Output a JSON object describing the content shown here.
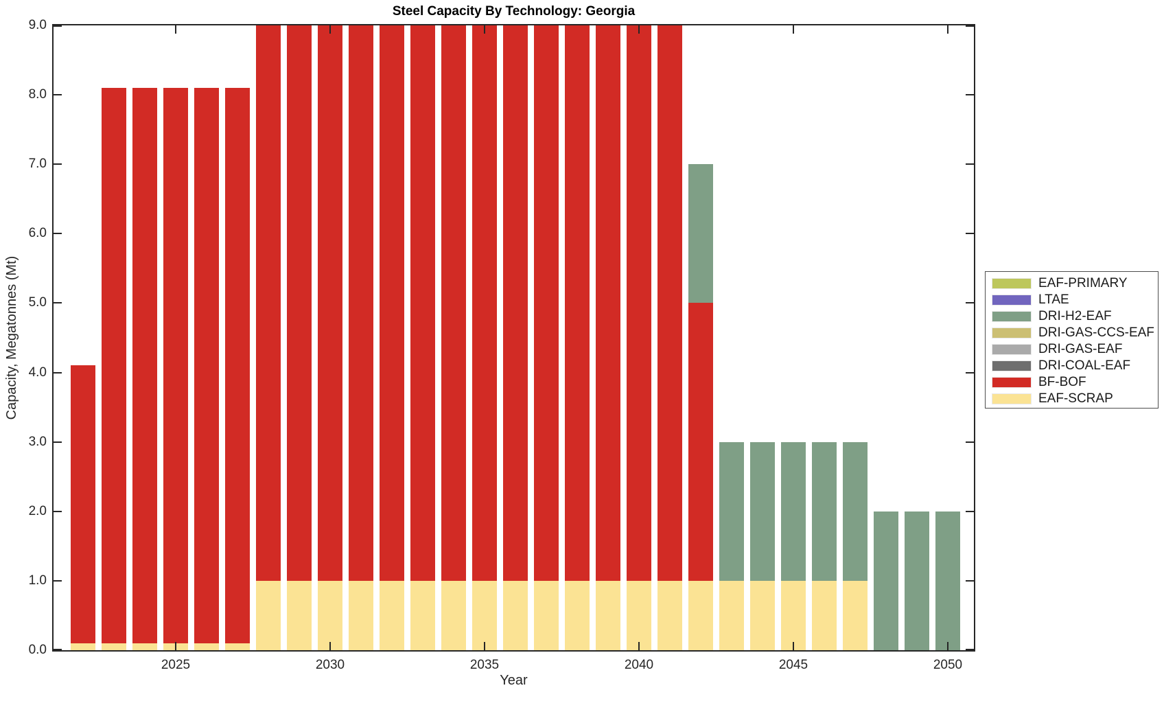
{
  "chart_data": {
    "type": "bar",
    "stacked": true,
    "title": "Steel Capacity By Technology: Georgia",
    "xlabel": "Year",
    "ylabel": "Capacity, Megatonnes (Mt)",
    "ylim": [
      0.0,
      9.0
    ],
    "ytick_step": 1.0,
    "ytick_labels": [
      "0.0",
      "1.0",
      "2.0",
      "3.0",
      "4.0",
      "5.0",
      "6.0",
      "7.0",
      "8.0",
      "9.0"
    ],
    "x": [
      2022,
      2023,
      2024,
      2025,
      2026,
      2027,
      2028,
      2029,
      2030,
      2031,
      2032,
      2033,
      2034,
      2035,
      2036,
      2037,
      2038,
      2039,
      2040,
      2041,
      2042,
      2043,
      2044,
      2045,
      2046,
      2047,
      2048,
      2049,
      2050
    ],
    "xtick_labels": [
      "2025",
      "2030",
      "2035",
      "2040",
      "2045",
      "2050"
    ],
    "xticks": [
      2025,
      2030,
      2035,
      2040,
      2045,
      2050
    ],
    "grid": false,
    "legend_position": "right-outside",
    "legend_order": [
      "EAF-PRIMARY",
      "LTAE",
      "DRI-H2-EAF",
      "DRI-GAS-CCS-EAF",
      "DRI-GAS-EAF",
      "DRI-COAL-EAF",
      "BF-BOF",
      "EAF-SCRAP"
    ],
    "series": [
      {
        "name": "EAF-SCRAP",
        "color": "#FBE394",
        "values": [
          0.1,
          0.1,
          0.1,
          0.1,
          0.1,
          0.1,
          1,
          1,
          1,
          1,
          1,
          1,
          1,
          1,
          1,
          1,
          1,
          1,
          1,
          1,
          1,
          1,
          1,
          1,
          1,
          1,
          0,
          0,
          0
        ]
      },
      {
        "name": "BF-BOF",
        "color": "#D22B25",
        "values": [
          4,
          8,
          8,
          8,
          8,
          8,
          8,
          8,
          8,
          8,
          8,
          8,
          8,
          8,
          8,
          8,
          8,
          8,
          8,
          8,
          4,
          0,
          0,
          0,
          0,
          0,
          0,
          0,
          0
        ]
      },
      {
        "name": "DRI-COAL-EAF",
        "color": "#6E6E6E",
        "values": [
          0,
          0,
          0,
          0,
          0,
          0,
          0,
          0,
          0,
          0,
          0,
          0,
          0,
          0,
          0,
          0,
          0,
          0,
          0,
          0,
          0,
          0,
          0,
          0,
          0,
          0,
          0,
          0,
          0
        ]
      },
      {
        "name": "DRI-GAS-EAF",
        "color": "#AAAAAA",
        "values": [
          0,
          0,
          0,
          0,
          0,
          0,
          0,
          0,
          0,
          0,
          0,
          0,
          0,
          0,
          0,
          0,
          0,
          0,
          0,
          0,
          0,
          0,
          0,
          0,
          0,
          0,
          0,
          0,
          0
        ]
      },
      {
        "name": "DRI-GAS-CCS-EAF",
        "color": "#CCBF73",
        "values": [
          0,
          0,
          0,
          0,
          0,
          0,
          0,
          0,
          0,
          0,
          0,
          0,
          0,
          0,
          0,
          0,
          0,
          0,
          0,
          0,
          0,
          0,
          0,
          0,
          0,
          0,
          0,
          0,
          0
        ]
      },
      {
        "name": "DRI-H2-EAF",
        "color": "#7F9F86",
        "values": [
          0,
          0,
          0,
          0,
          0,
          0,
          0,
          0,
          0,
          0,
          0,
          0,
          0,
          0,
          0,
          0,
          0,
          0,
          0,
          0,
          2,
          2,
          2,
          2,
          2,
          2,
          2,
          2,
          2
        ]
      },
      {
        "name": "LTAE",
        "color": "#7165BE",
        "values": [
          0,
          0,
          0,
          0,
          0,
          0,
          0,
          0,
          0,
          0,
          0,
          0,
          0,
          0,
          0,
          0,
          0,
          0,
          0,
          0,
          0,
          0,
          0,
          0,
          0,
          0,
          0,
          0,
          0
        ]
      },
      {
        "name": "EAF-PRIMARY",
        "color": "#BDC75C",
        "values": [
          0,
          0,
          0,
          0,
          0,
          0,
          0,
          0,
          0,
          0,
          0,
          0,
          0,
          0,
          0,
          0,
          0,
          0,
          0,
          0,
          0,
          0,
          0,
          0,
          0,
          0,
          0,
          0,
          0
        ]
      }
    ]
  }
}
